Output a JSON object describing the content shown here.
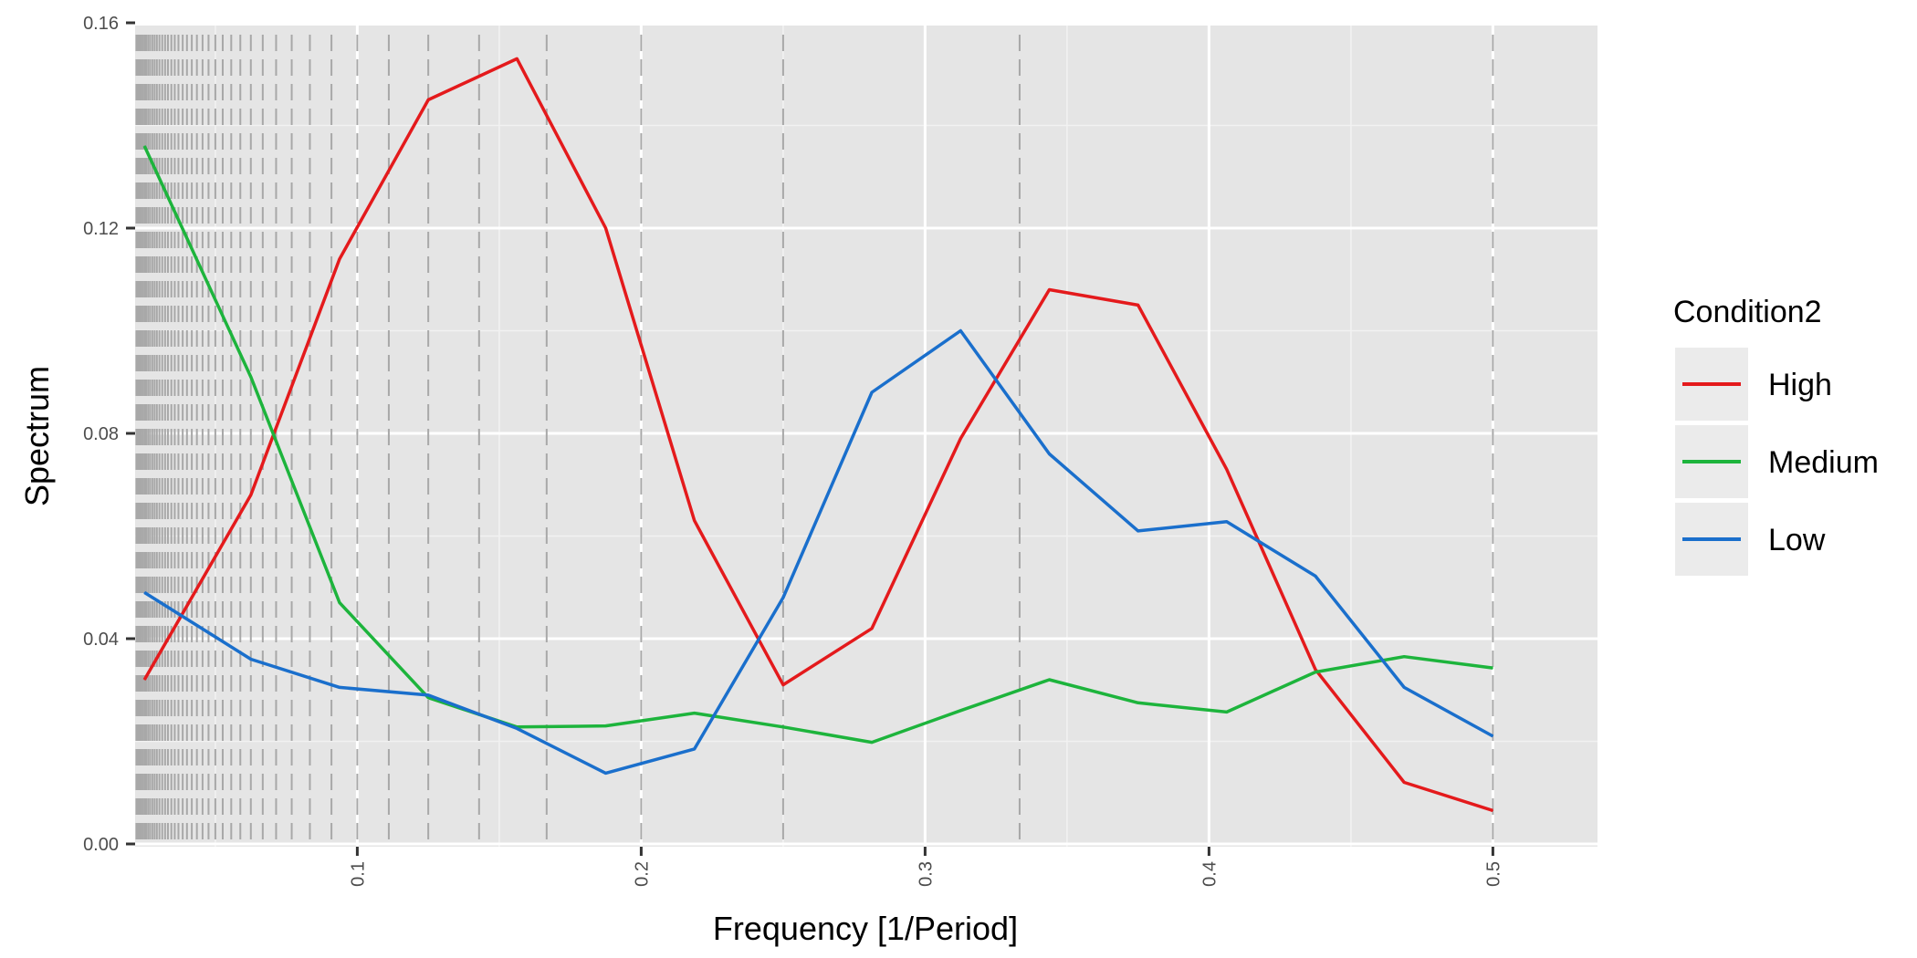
{
  "chart_data": {
    "type": "line",
    "xlabel": "Frequency [1/Period]",
    "ylabel": "Spectrum",
    "xlim": [
      0.0,
      0.5
    ],
    "ylim": [
      0.0,
      0.16
    ],
    "grid": true,
    "legend_position": "right",
    "x_ticks": [
      0.1,
      0.2,
      0.3,
      0.4,
      0.5
    ],
    "x_tick_labels": [
      "0.1",
      "0.2",
      "0.3",
      "0.4",
      "0.5"
    ],
    "y_ticks": [
      0.0,
      0.04,
      0.08,
      0.12,
      0.16
    ],
    "y_tick_labels": [
      "0.00",
      "0.04",
      "0.08",
      "0.12",
      "0.16"
    ],
    "reference_lines_x": [
      0.5,
      0.3333,
      0.25,
      0.2,
      0.1667,
      0.1429,
      0.125,
      0.1111,
      0.1,
      0.0909,
      0.0833,
      0.0769,
      0.0714,
      0.0667,
      0.0625,
      0.0588,
      0.0556,
      0.0526,
      0.05,
      0.0476,
      0.0455,
      0.0435,
      0.0417,
      0.04,
      0.0385,
      0.037,
      0.0357,
      0.0345,
      0.0333,
      0.0323,
      0.0313,
      0.0303,
      0.0294,
      0.0286,
      0.0278,
      0.027,
      0.0263,
      0.0256,
      0.025,
      0.0244,
      0.0238,
      0.0233,
      0.0227,
      0.0222
    ],
    "legend": {
      "title": "Condition2",
      "entries": [
        "High",
        "Medium",
        "Low"
      ]
    },
    "x": [
      0.025,
      0.0625,
      0.09375,
      0.125,
      0.15625,
      0.1875,
      0.21875,
      0.25,
      0.28125,
      0.3125,
      0.34375,
      0.375,
      0.40625,
      0.4375,
      0.46875,
      0.5
    ],
    "series": [
      {
        "name": "High",
        "color": "#e41a1c",
        "values": [
          0.032,
          0.068,
          0.114,
          0.145,
          0.153,
          0.12,
          0.063,
          0.031,
          0.042,
          0.079,
          0.108,
          0.105,
          0.073,
          0.034,
          0.012,
          0.0065
        ]
      },
      {
        "name": "Medium",
        "color": "#1db43c",
        "values": [
          0.136,
          0.091,
          0.047,
          0.0285,
          0.0228,
          0.023,
          0.0255,
          0.0228,
          0.0198,
          0.026,
          0.032,
          0.0275,
          0.0257,
          0.0335,
          0.0365,
          0.0343
        ]
      },
      {
        "name": "Low",
        "color": "#1a6fcc",
        "values": [
          0.049,
          0.036,
          0.0305,
          0.029,
          0.0225,
          0.0138,
          0.0185,
          0.048,
          0.088,
          0.1,
          0.076,
          0.061,
          0.0628,
          0.0522,
          0.0305,
          0.021
        ]
      }
    ]
  }
}
